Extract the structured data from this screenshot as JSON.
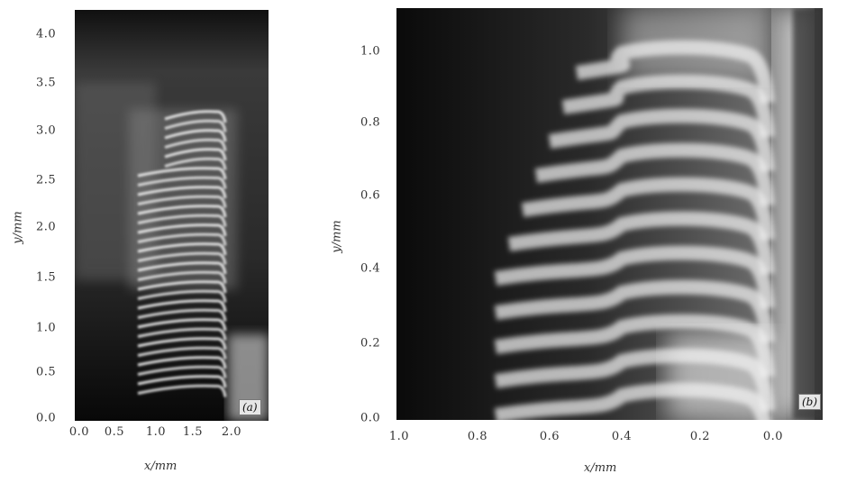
{
  "figure": {
    "panel_a": {
      "tag": "(a)",
      "y_label": "y/mm",
      "x_label": "x/mm",
      "y_ticks": [
        "0.0",
        "0.5",
        "1.0",
        "1.5",
        "2.0",
        "2.5",
        "3.0",
        "3.5",
        "4.0"
      ],
      "x_ticks": [
        "0.0",
        "0.5",
        "1.0",
        "1.5",
        "2.0"
      ]
    },
    "panel_b": {
      "tag": "(b)",
      "y_label": "y/mm",
      "x_label": "x/mm",
      "y_ticks": [
        "0.0",
        "0.2",
        "0.4",
        "0.6",
        "0.8",
        "1.0"
      ],
      "x_ticks": [
        "1.0",
        "0.8",
        "0.6",
        "0.4",
        "0.2",
        "0.0"
      ]
    }
  }
}
